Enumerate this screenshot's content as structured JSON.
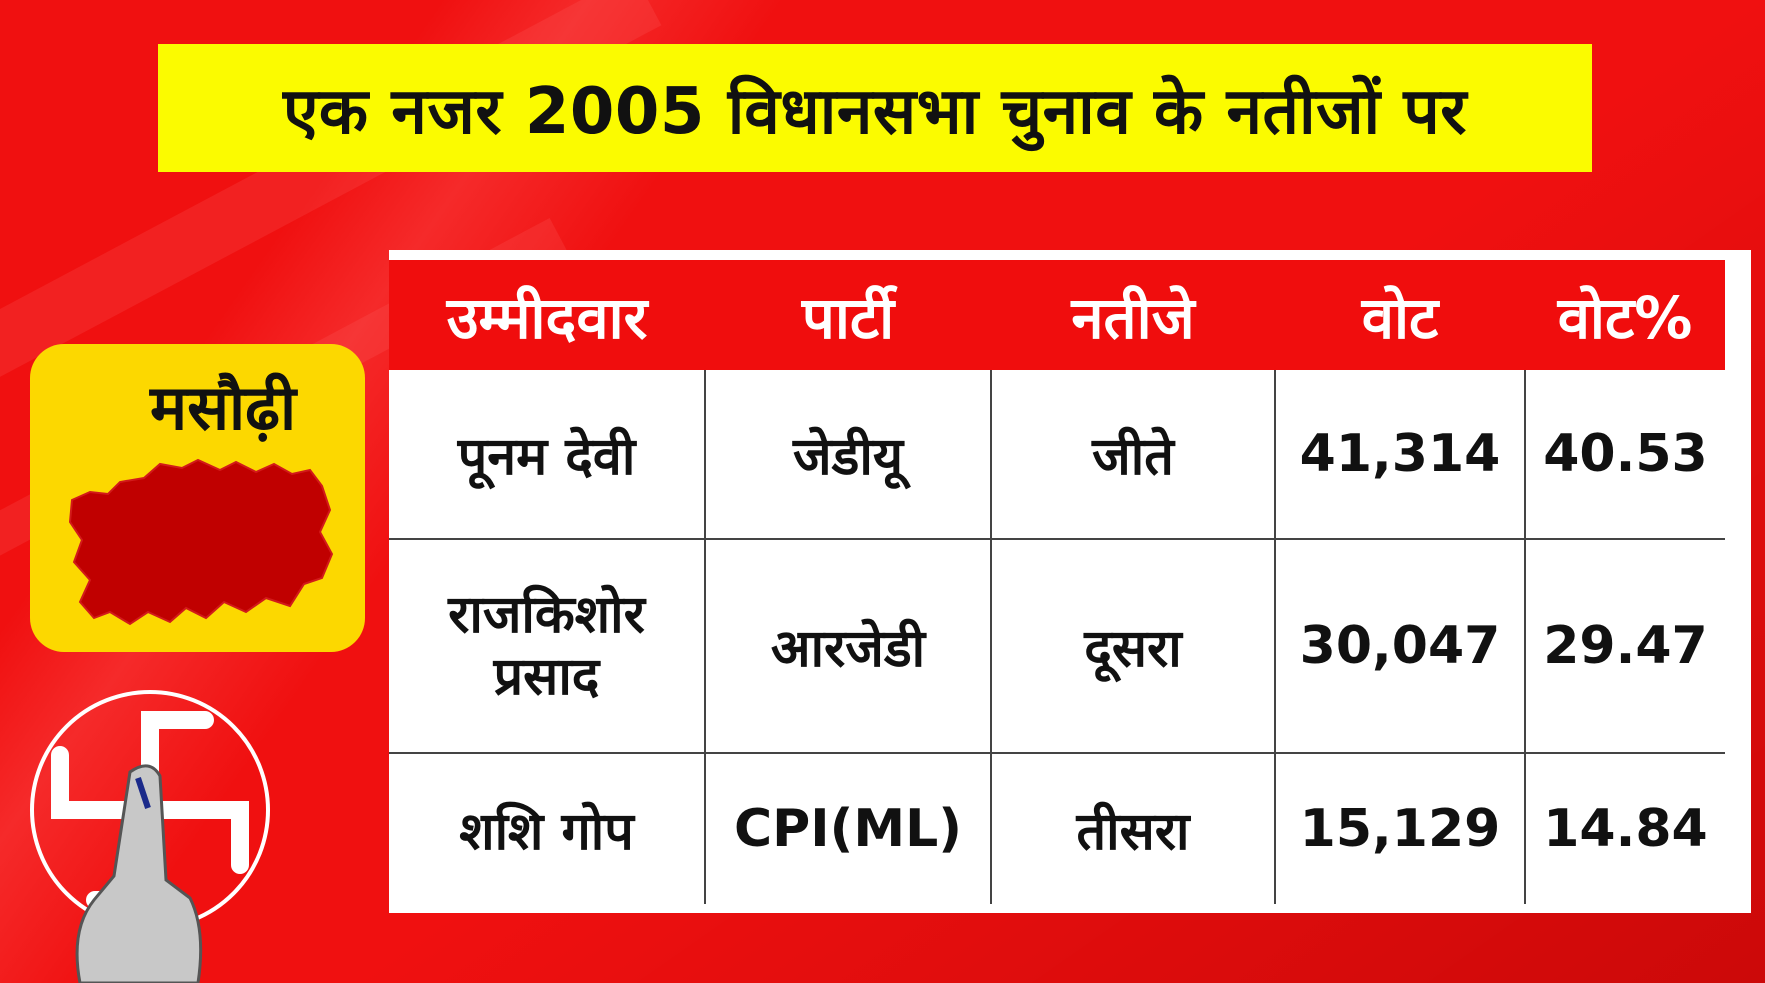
{
  "title": "एक नजर 2005 विधानसभा चुनाव के नतीजों पर",
  "constituency": "मसौढ़ी",
  "table": {
    "headers": [
      "उम्मीदवार",
      "पार्टी",
      "नतीजे",
      "वोट",
      "वोट%"
    ],
    "rows": [
      {
        "candidate": "पूनम देवी",
        "party": "जेडीयू",
        "result": "जीते",
        "votes": "41,314",
        "vote_pct": "40.53"
      },
      {
        "candidate": "राजकिशोर प्रसाद",
        "party": "आरजेडी",
        "result": "दूसरा",
        "votes": "30,047",
        "vote_pct": "29.47"
      },
      {
        "candidate": "शशि गोप",
        "party": "CPI(ML)",
        "result": "तीसरा",
        "votes": "15,129",
        "vote_pct": "14.84"
      }
    ]
  },
  "colors": {
    "background": "#f01010",
    "title_bar": "#fbfb00",
    "header": "#f00d0d",
    "map_card": "#fcd800",
    "map_region": "#c00000"
  },
  "icons": [
    "map-outline-icon",
    "swastika-election-symbol-icon",
    "inked-finger-icon"
  ]
}
